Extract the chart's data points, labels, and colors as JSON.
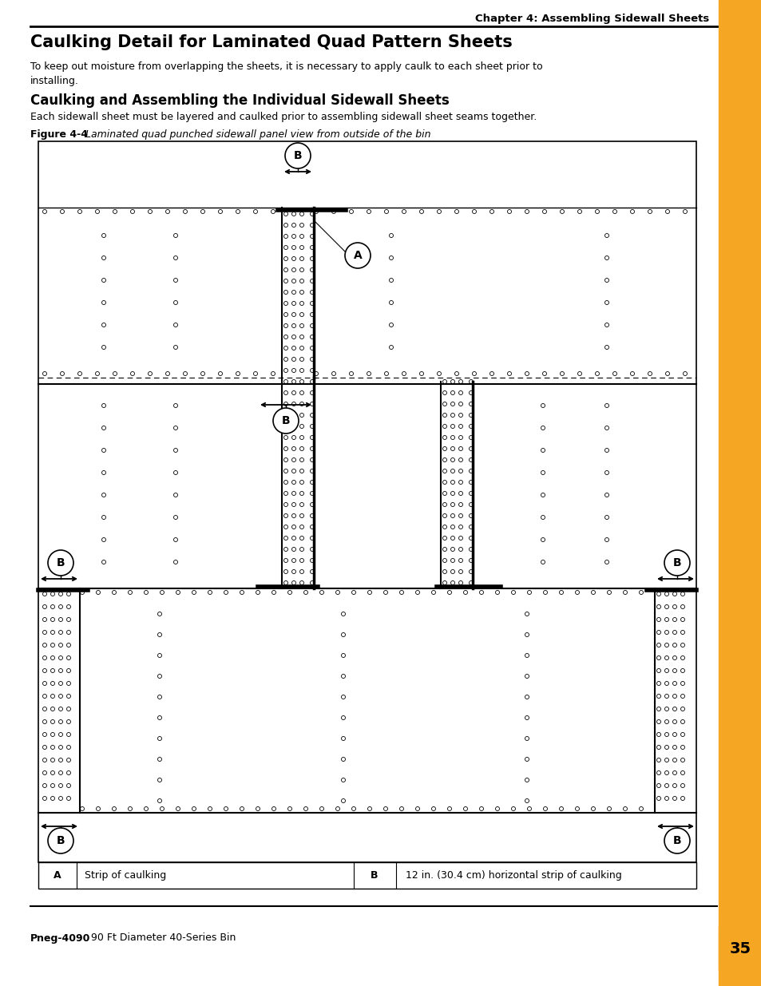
{
  "page_bg": "#ffffff",
  "orange_bar_color": "#F5A623",
  "chapter_header": "Chapter 4: Assembling Sidewall Sheets",
  "main_title": "Caulking Detail for Laminated Quad Pattern Sheets",
  "body_text1": "To keep out moisture from overlapping the sheets, it is necessary to apply caulk to each sheet prior to\ninstalling.",
  "section_title": "Caulking and Assembling the Individual Sidewall Sheets",
  "body_text2": "Each sidewall sheet must be layered and caulked prior to assembling sidewall sheet seams together.",
  "figure_label": "Figure 4-4",
  "figure_caption": " Laminated quad punched sidewall panel view from outside of the bin",
  "footer_bold": "Pneg-4090",
  "footer_normal": " 90 Ft Diameter 40-Series Bin",
  "footer_page": "35",
  "legend_A_text": "Strip of caulking",
  "legend_B_text": "12 in. (30.4 cm) horizontal strip of caulking"
}
